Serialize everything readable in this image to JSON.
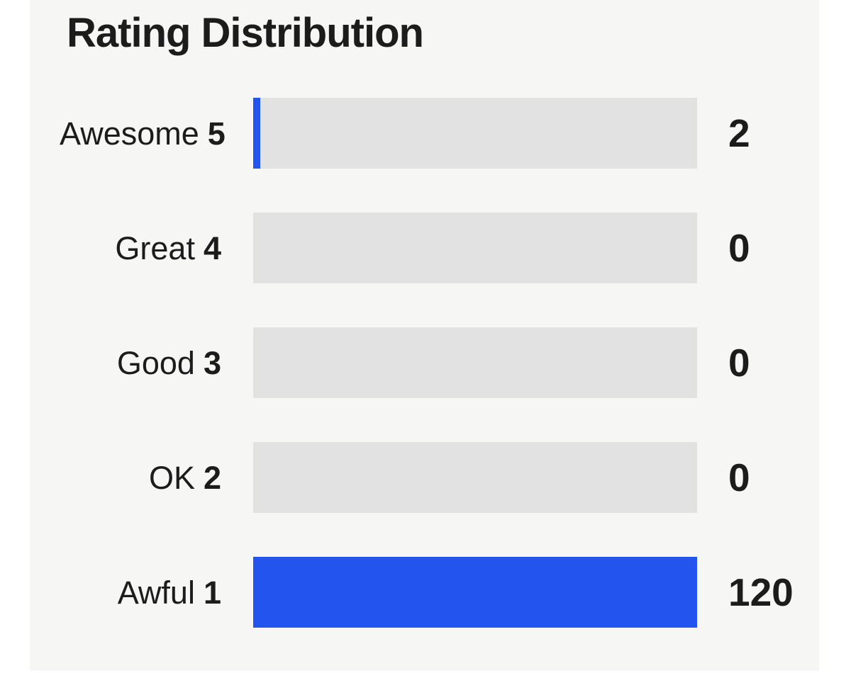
{
  "colors": {
    "page_bg": "#ffffff",
    "panel_bg": "#f6f6f5",
    "track": "#e2e2e2",
    "bar_fill": "#2454ee",
    "text": "#1c1c1c"
  },
  "chart": {
    "title": "Rating Distribution",
    "rows": [
      {
        "label": "Awesome",
        "rating": "5",
        "count": "2"
      },
      {
        "label": "Great",
        "rating": "4",
        "count": "0"
      },
      {
        "label": "Good",
        "rating": "3",
        "count": "0"
      },
      {
        "label": "OK",
        "rating": "2",
        "count": "0"
      },
      {
        "label": "Awful",
        "rating": "1",
        "count": "120"
      }
    ]
  },
  "chart_data": {
    "type": "bar",
    "orientation": "horizontal",
    "title": "Rating Distribution",
    "categories": [
      "Awesome 5",
      "Great 4",
      "Good 3",
      "OK 2",
      "Awful 1"
    ],
    "values": [
      2,
      0,
      0,
      0,
      120
    ],
    "value_labels": [
      "2",
      "0",
      "0",
      "0",
      "120"
    ],
    "max": 120,
    "xlim": [
      0,
      120
    ],
    "grid": false,
    "legend": false,
    "bar_color": "#2454ee",
    "track_color": "#e2e2e2"
  }
}
